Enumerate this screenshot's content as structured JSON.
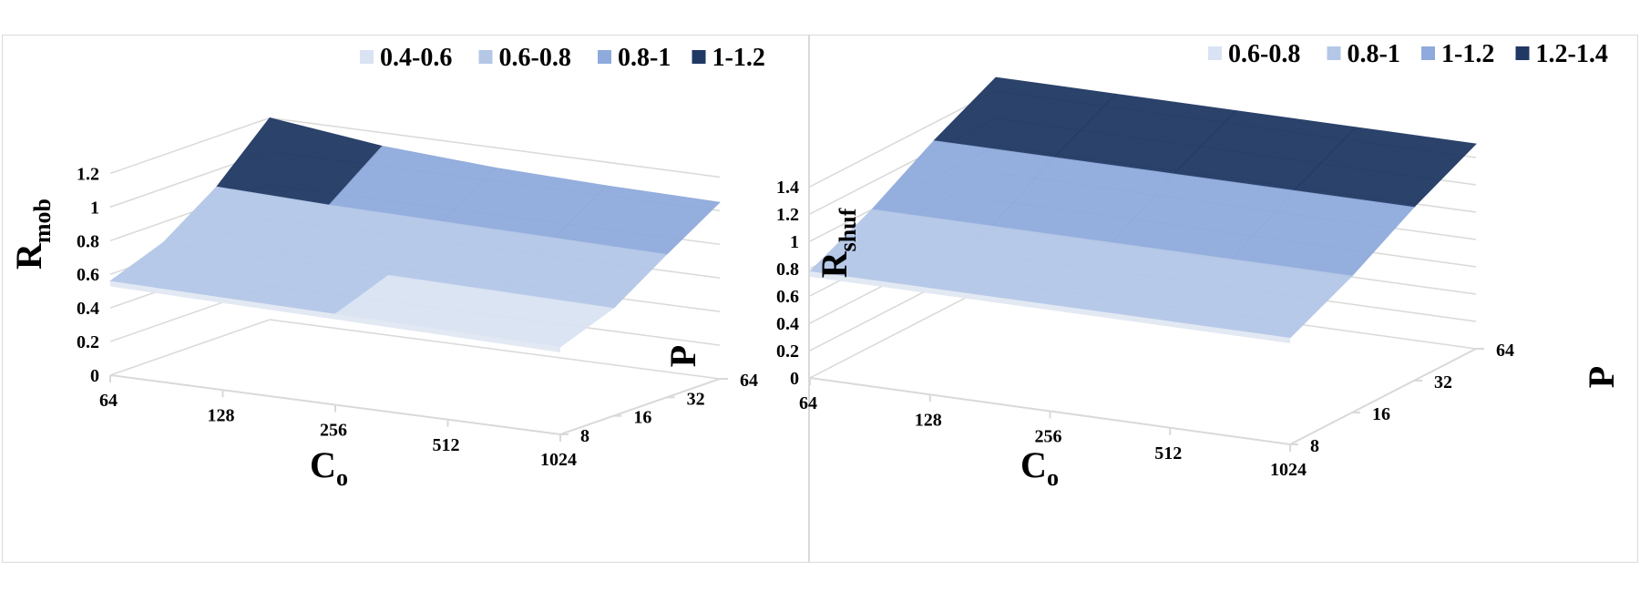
{
  "chart_data": [
    {
      "type": "surface",
      "title": "",
      "ylabel": "R",
      "ylabel_sub": "mob",
      "xlabel": "C",
      "xlabel_sub": "o",
      "zlabel": "P",
      "x_categories": [
        "64",
        "128",
        "256",
        "512",
        "1024"
      ],
      "z_categories": [
        "8",
        "16",
        "32",
        "64"
      ],
      "y_ticks": [
        "0",
        "0.2",
        "0.4",
        "0.6",
        "0.8",
        "1",
        "1.2"
      ],
      "ylim": [
        0,
        1.3
      ],
      "grid": true,
      "legend_position": "top-right",
      "legend": [
        {
          "label": "0.4-0.6",
          "color": "#dae3f3"
        },
        {
          "label": "0.6-0.8",
          "color": "#b4c7e7"
        },
        {
          "label": "0.8-1",
          "color": "#8faadc"
        },
        {
          "label": "1-1.2",
          "color": "#203864"
        }
      ],
      "values": [
        [
          0.56,
          0.55,
          0.54,
          0.53,
          0.52
        ],
        [
          0.68,
          0.67,
          0.66,
          0.65,
          0.64
        ],
        [
          0.9,
          0.88,
          0.87,
          0.86,
          0.85
        ],
        [
          1.2,
          1.12,
          1.08,
          1.06,
          1.05
        ]
      ]
    },
    {
      "type": "surface",
      "title": "",
      "ylabel": "R",
      "ylabel_sub": "shuf",
      "xlabel": "C",
      "xlabel_sub": "o",
      "zlabel": "P",
      "x_categories": [
        "64",
        "128",
        "256",
        "512",
        "1024"
      ],
      "z_categories": [
        "8",
        "16",
        "32",
        "64"
      ],
      "y_ticks": [
        "0",
        "0.2",
        "0.4",
        "0.6",
        "0.8",
        "1",
        "1.2",
        "1.4"
      ],
      "ylim": [
        0,
        1.6
      ],
      "grid": true,
      "legend_position": "top-right",
      "legend": [
        {
          "label": "0.6-0.8",
          "color": "#dae3f3"
        },
        {
          "label": "0.8-1",
          "color": "#b4c7e7"
        },
        {
          "label": "1-1.2",
          "color": "#8faadc"
        },
        {
          "label": "1.2-1.4",
          "color": "#203864"
        }
      ],
      "values": [
        [
          0.78,
          0.78,
          0.78,
          0.78,
          0.78
        ],
        [
          1.0,
          1.0,
          1.0,
          1.0,
          1.0
        ],
        [
          1.27,
          1.27,
          1.27,
          1.27,
          1.27
        ],
        [
          1.5,
          1.5,
          1.5,
          1.5,
          1.5
        ]
      ]
    }
  ]
}
